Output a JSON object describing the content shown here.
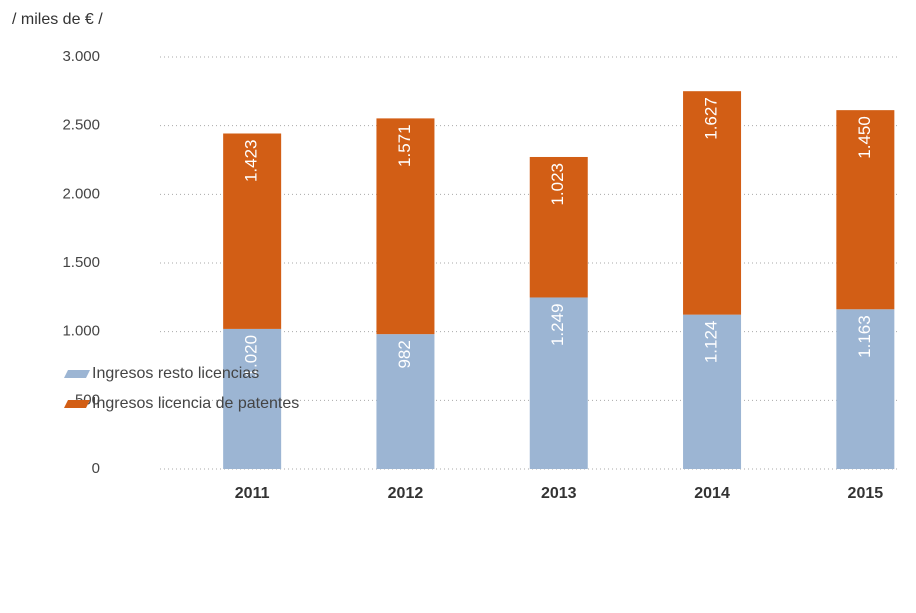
{
  "chart_data": {
    "type": "stacked_bar",
    "y_label": "/  miles de €  /",
    "categories": [
      "2011",
      "2012",
      "2013",
      "2014",
      "2015"
    ],
    "series": [
      {
        "name": "Ingresos resto licencias",
        "color": "#9cb5d3",
        "values": [
          1020,
          982,
          1249,
          1124,
          1163
        ],
        "value_labels": [
          "1.020",
          "982",
          "1.249",
          "1.124",
          "1.163"
        ]
      },
      {
        "name": "Ingresos licencia de patentes",
        "color": "#d25e15",
        "values": [
          1423,
          1571,
          1023,
          1627,
          1450
        ],
        "value_labels": [
          "1.423",
          "1.571",
          "1.023",
          "1.627",
          "1.450"
        ]
      }
    ],
    "ylim": [
      0,
      3000
    ],
    "yticks": [
      0,
      500,
      {
        "value": 1000,
        "label": "1.000"
      },
      {
        "value": 1500,
        "label": "1.500"
      },
      {
        "value": 2000,
        "label": "2.000"
      },
      {
        "value": 2500,
        "label": "2.500"
      },
      {
        "value": 3000,
        "label": "3.000"
      }
    ],
    "grid": true
  }
}
